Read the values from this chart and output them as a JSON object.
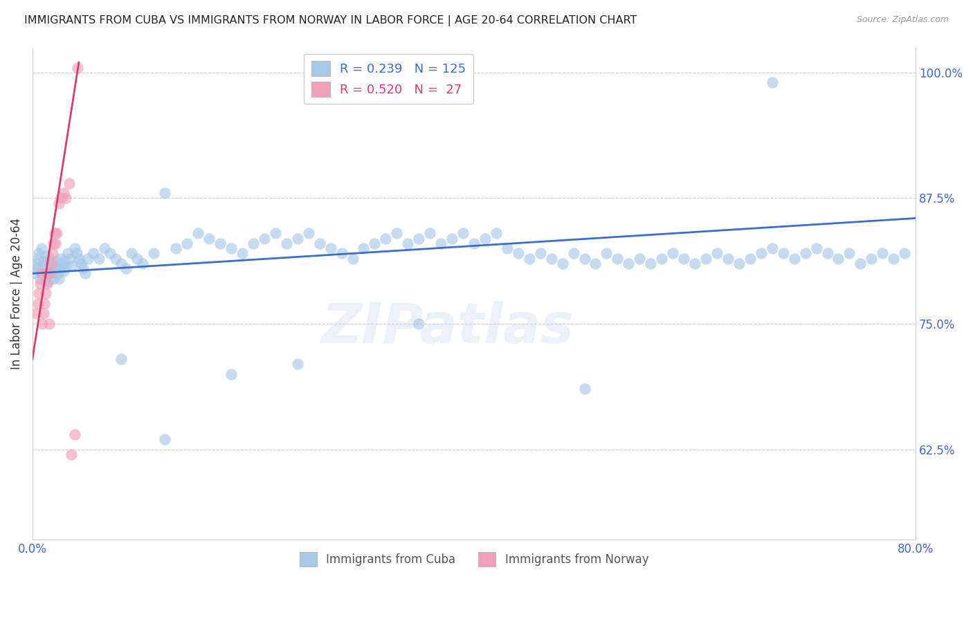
{
  "title": "IMMIGRANTS FROM CUBA VS IMMIGRANTS FROM NORWAY IN LABOR FORCE | AGE 20-64 CORRELATION CHART",
  "source": "Source: ZipAtlas.com",
  "ylabel_left": "In Labor Force | Age 20-64",
  "r_cuba": 0.239,
  "n_cuba": 125,
  "r_norway": 0.52,
  "n_norway": 27,
  "color_cuba": "#A8C8E8",
  "color_norway": "#F0A0B8",
  "color_trend_cuba": "#3A6FC4",
  "color_trend_norway": "#D04070",
  "watermark": "ZIPatlas",
  "xmin": 0.0,
  "xmax": 0.8,
  "ymin": 0.535,
  "ymax": 1.025,
  "right_yticks": [
    0.625,
    0.75,
    0.875,
    1.0
  ],
  "right_yticklabels": [
    "62.5%",
    "75.0%",
    "87.5%",
    "100.0%"
  ],
  "cuba_x": [
    0.002,
    0.003,
    0.004,
    0.005,
    0.006,
    0.007,
    0.008,
    0.009,
    0.01,
    0.011,
    0.012,
    0.013,
    0.014,
    0.015,
    0.016,
    0.017,
    0.018,
    0.019,
    0.02,
    0.021,
    0.022,
    0.023,
    0.024,
    0.025,
    0.026,
    0.027,
    0.028,
    0.029,
    0.03,
    0.032,
    0.034,
    0.036,
    0.038,
    0.04,
    0.042,
    0.044,
    0.046,
    0.048,
    0.05,
    0.055,
    0.06,
    0.065,
    0.07,
    0.075,
    0.08,
    0.085,
    0.09,
    0.095,
    0.1,
    0.11,
    0.12,
    0.13,
    0.14,
    0.15,
    0.16,
    0.17,
    0.18,
    0.19,
    0.2,
    0.21,
    0.22,
    0.23,
    0.24,
    0.25,
    0.26,
    0.27,
    0.28,
    0.29,
    0.3,
    0.31,
    0.32,
    0.33,
    0.34,
    0.35,
    0.36,
    0.37,
    0.38,
    0.39,
    0.4,
    0.41,
    0.42,
    0.43,
    0.44,
    0.45,
    0.46,
    0.47,
    0.48,
    0.49,
    0.5,
    0.51,
    0.52,
    0.53,
    0.54,
    0.55,
    0.56,
    0.57,
    0.58,
    0.59,
    0.6,
    0.61,
    0.62,
    0.63,
    0.64,
    0.65,
    0.66,
    0.67,
    0.68,
    0.69,
    0.7,
    0.71,
    0.72,
    0.73,
    0.74,
    0.75,
    0.76,
    0.77,
    0.78,
    0.79,
    0.5,
    0.35,
    0.12,
    0.18,
    0.24,
    0.67,
    0.08
  ],
  "cuba_y": [
    0.8,
    0.81,
    0.805,
    0.815,
    0.82,
    0.795,
    0.825,
    0.808,
    0.812,
    0.798,
    0.802,
    0.818,
    0.792,
    0.815,
    0.81,
    0.805,
    0.8,
    0.795,
    0.808,
    0.812,
    0.805,
    0.8,
    0.795,
    0.81,
    0.815,
    0.808,
    0.802,
    0.812,
    0.807,
    0.82,
    0.815,
    0.808,
    0.825,
    0.82,
    0.815,
    0.81,
    0.805,
    0.8,
    0.815,
    0.82,
    0.815,
    0.825,
    0.82,
    0.815,
    0.81,
    0.805,
    0.82,
    0.815,
    0.81,
    0.82,
    0.88,
    0.825,
    0.83,
    0.84,
    0.835,
    0.83,
    0.825,
    0.82,
    0.83,
    0.835,
    0.84,
    0.83,
    0.835,
    0.84,
    0.83,
    0.825,
    0.82,
    0.815,
    0.825,
    0.83,
    0.835,
    0.84,
    0.83,
    0.835,
    0.84,
    0.83,
    0.835,
    0.84,
    0.83,
    0.835,
    0.84,
    0.825,
    0.82,
    0.815,
    0.82,
    0.815,
    0.81,
    0.82,
    0.815,
    0.81,
    0.82,
    0.815,
    0.81,
    0.815,
    0.81,
    0.815,
    0.82,
    0.815,
    0.81,
    0.815,
    0.82,
    0.815,
    0.81,
    0.815,
    0.82,
    0.825,
    0.82,
    0.815,
    0.82,
    0.825,
    0.82,
    0.815,
    0.82,
    0.81,
    0.815,
    0.82,
    0.815,
    0.82,
    0.685,
    0.75,
    0.635,
    0.7,
    0.71,
    0.99,
    0.715
  ],
  "norway_x": [
    0.003,
    0.005,
    0.006,
    0.007,
    0.008,
    0.009,
    0.01,
    0.011,
    0.012,
    0.013,
    0.014,
    0.015,
    0.016,
    0.017,
    0.018,
    0.019,
    0.02,
    0.021,
    0.022,
    0.024,
    0.026,
    0.028,
    0.03,
    0.033,
    0.035,
    0.038,
    0.041
  ],
  "norway_y": [
    0.76,
    0.77,
    0.78,
    0.79,
    0.8,
    0.75,
    0.76,
    0.77,
    0.78,
    0.79,
    0.8,
    0.75,
    0.8,
    0.81,
    0.82,
    0.83,
    0.84,
    0.83,
    0.84,
    0.87,
    0.875,
    0.88,
    0.875,
    0.89,
    0.62,
    0.64,
    1.005
  ],
  "norway_trend_x0": 0.0,
  "norway_trend_y0": 0.715,
  "norway_trend_x1": 0.042,
  "norway_trend_y1": 1.01,
  "cuba_trend_x0": 0.0,
  "cuba_trend_y0": 0.8,
  "cuba_trend_x1": 0.8,
  "cuba_trend_y1": 0.855
}
